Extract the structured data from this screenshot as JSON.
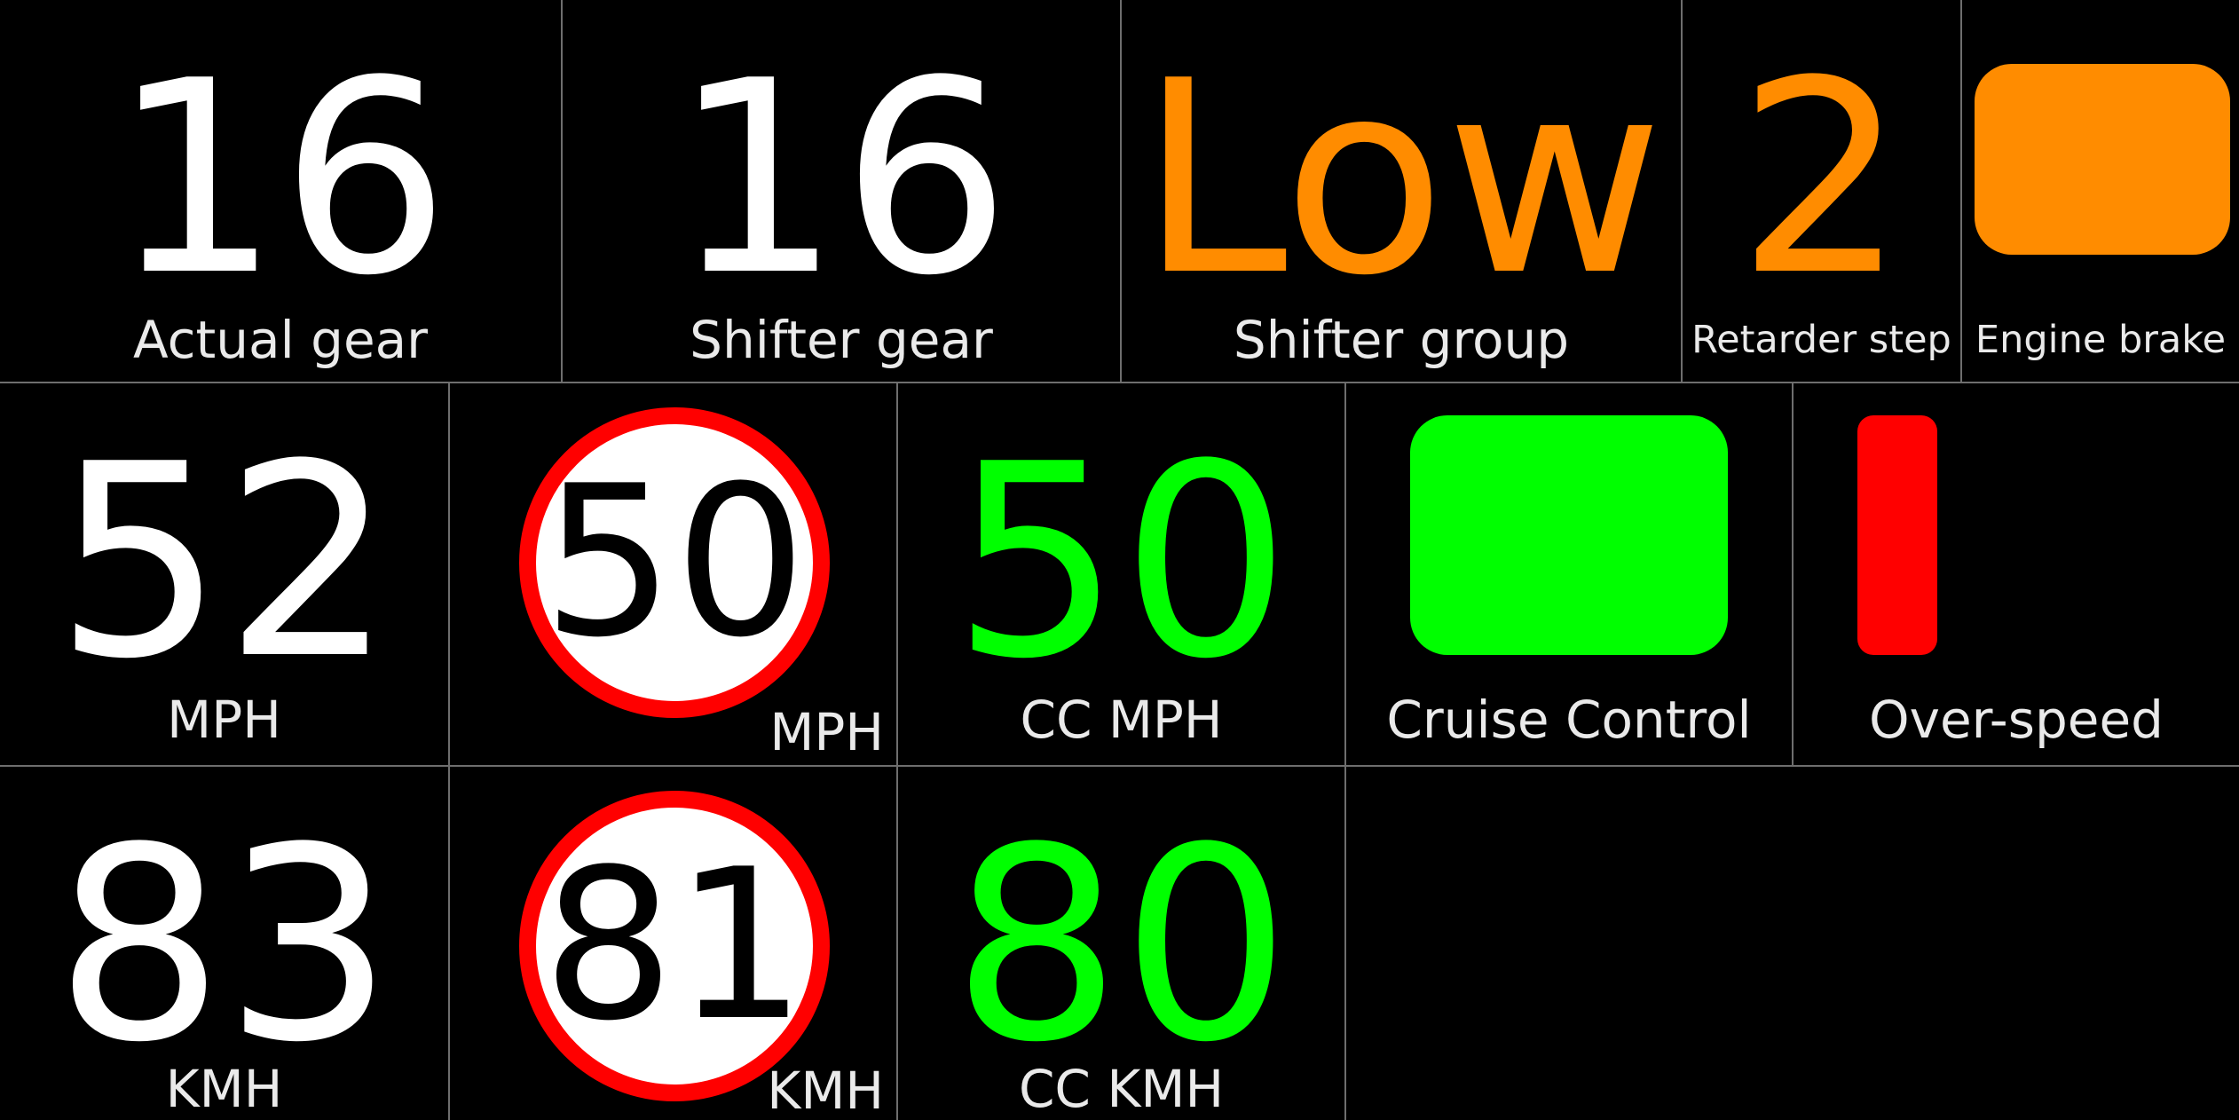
{
  "row1": {
    "actual_gear": {
      "value": "16",
      "label": "Actual gear"
    },
    "shifter_gear": {
      "value": "16",
      "label": "Shifter gear"
    },
    "shifter_group": {
      "value": "Low",
      "label": "Shifter group"
    },
    "retarder_step": {
      "value": "2",
      "label": "Retarder step"
    },
    "engine_brake": {
      "label": "Engine brake",
      "indicator_color": "#ff8c00",
      "active": true
    }
  },
  "row2": {
    "speed": {
      "value": "52",
      "label": "MPH"
    },
    "speed_limit": {
      "value": "50",
      "label": "MPH"
    },
    "cc_speed": {
      "value": "50",
      "label": "CC MPH"
    },
    "cruise_control": {
      "label": "Cruise Control",
      "indicator_color": "#00ff00",
      "active": true
    },
    "over_speed": {
      "label": "Over-speed",
      "indicator_color": "#ff0000",
      "active": true
    }
  },
  "row3": {
    "speed": {
      "value": "83",
      "label": "KMH"
    },
    "speed_limit": {
      "value": "81",
      "label": "KMH"
    },
    "cc_speed": {
      "value": "80",
      "label": "CC KMH"
    }
  },
  "colors": {
    "background": "#000000",
    "divider": "#6e6e6e",
    "orange_accent": "#ff8c00",
    "green_accent": "#00ff00",
    "sign_ring": "#ff0000"
  }
}
